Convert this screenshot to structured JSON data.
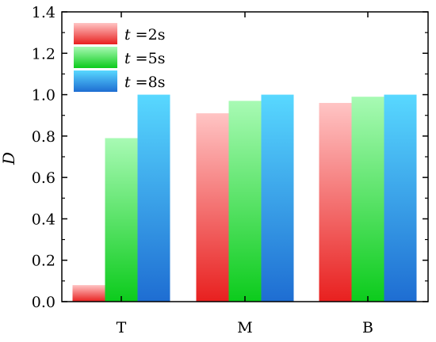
{
  "chart_data": {
    "type": "bar",
    "categories": [
      "T",
      "M",
      "B"
    ],
    "series": [
      {
        "name_italic": "t",
        "name_rest": " =2s",
        "values": [
          0.08,
          0.91,
          0.96
        ],
        "color_top": "#ffc4c4",
        "color_bottom": "#e8201f"
      },
      {
        "name_italic": "t",
        "name_rest": " =5s",
        "values": [
          0.79,
          0.97,
          0.99
        ],
        "color_top": "#a8fab4",
        "color_bottom": "#0ccb1c"
      },
      {
        "name_italic": "t",
        "name_rest": " =8s",
        "values": [
          1.0,
          1.0,
          1.0
        ],
        "color_top": "#58d8ff",
        "color_bottom": "#1e6dd2"
      }
    ],
    "ylabel": "D",
    "ylim": [
      0.0,
      1.4
    ],
    "yticks": [
      "0.0",
      "0.2",
      "0.4",
      "0.6",
      "0.8",
      "1.0",
      "1.2",
      "1.4"
    ],
    "legend": "top-left",
    "grid": false
  }
}
